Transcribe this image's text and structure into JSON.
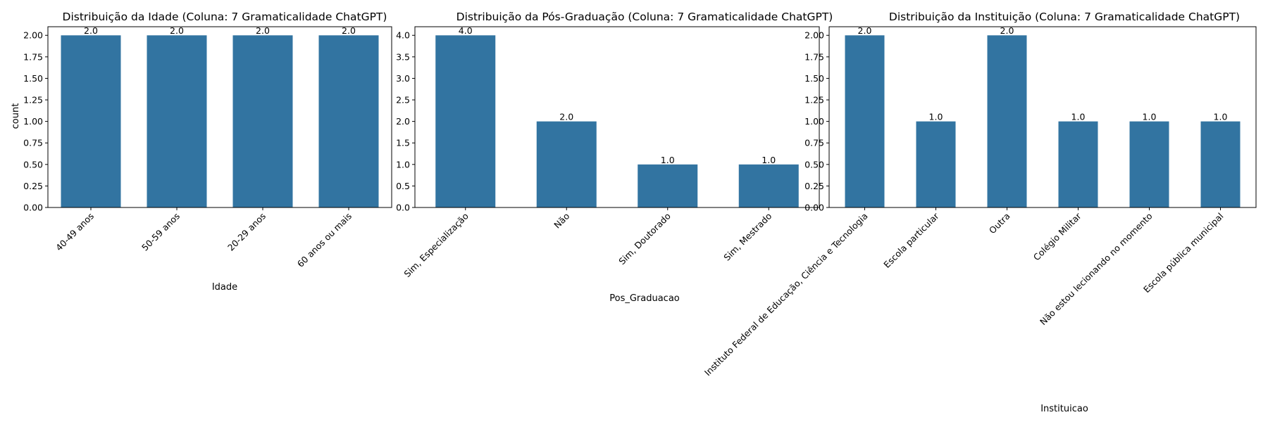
{
  "chart_data": [
    {
      "type": "bar",
      "title": "Distribuição da Idade (Coluna: 7 Gramaticalidade ChatGPT)",
      "xlabel": "Idade",
      "ylabel": "count",
      "categories": [
        "40-49 anos",
        "50-59 anos",
        "20-29 anos",
        "60 anos ou mais"
      ],
      "values": [
        2.0,
        2.0,
        2.0,
        2.0
      ],
      "data_labels": [
        "2.0",
        "2.0",
        "2.0",
        "2.0"
      ],
      "ylim": [
        0,
        2.1
      ],
      "yticks": [
        0,
        0.25,
        0.5,
        0.75,
        1.0,
        1.25,
        1.5,
        1.75,
        2.0
      ],
      "ytick_labels": [
        "0.00",
        "0.25",
        "0.50",
        "0.75",
        "1.00",
        "1.25",
        "1.50",
        "1.75",
        "2.00"
      ],
      "bar_color": "#3274a1",
      "grid": false,
      "legend": "none",
      "xtick_rotation": 45
    },
    {
      "type": "bar",
      "title": "Distribuição da Pós-Graduação (Coluna: 7 Gramaticalidade ChatGPT)",
      "xlabel": "Pos_Graduacao",
      "ylabel": "count",
      "categories": [
        "Sim, Especialização",
        "Não",
        "Sim, Doutorado",
        "Sim, Mestrado"
      ],
      "values": [
        4.0,
        2.0,
        1.0,
        1.0
      ],
      "data_labels": [
        "4.0",
        "2.0",
        "1.0",
        "1.0"
      ],
      "ylim": [
        0,
        4.2
      ],
      "yticks": [
        0,
        0.5,
        1.0,
        1.5,
        2.0,
        2.5,
        3.0,
        3.5,
        4.0
      ],
      "ytick_labels": [
        "0.0",
        "0.5",
        "1.0",
        "1.5",
        "2.0",
        "2.5",
        "3.0",
        "3.5",
        "4.0"
      ],
      "bar_color": "#3274a1",
      "grid": false,
      "legend": "none",
      "xtick_rotation": 45
    },
    {
      "type": "bar",
      "title": "Distribuição da Instituição (Coluna: 7 Gramaticalidade ChatGPT)",
      "xlabel": "Instituicao",
      "ylabel": "count",
      "categories": [
        "Instituto Federal de Educação, Ciência e Tecnologia",
        "Escola particular",
        "Outra",
        "Colégio Militar",
        "Não estou lecionando no momento",
        "Escola pública municipal"
      ],
      "values": [
        2.0,
        1.0,
        2.0,
        1.0,
        1.0,
        1.0
      ],
      "data_labels": [
        "2.0",
        "1.0",
        "2.0",
        "1.0",
        "1.0",
        "1.0"
      ],
      "ylim": [
        0,
        2.1
      ],
      "yticks": [
        0,
        0.25,
        0.5,
        0.75,
        1.0,
        1.25,
        1.5,
        1.75,
        2.0
      ],
      "ytick_labels": [
        "0.00",
        "0.25",
        "0.50",
        "0.75",
        "1.00",
        "1.25",
        "1.50",
        "1.75",
        "2.00"
      ],
      "bar_color": "#3274a1",
      "grid": false,
      "legend": "none",
      "xtick_rotation": 45
    }
  ]
}
